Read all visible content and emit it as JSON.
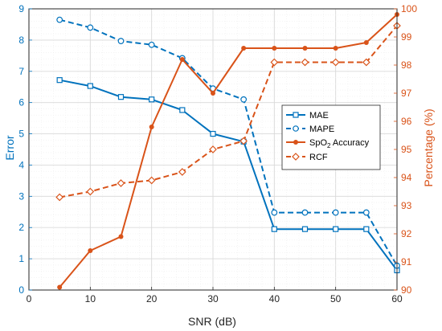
{
  "chart_data": {
    "type": "line",
    "xlabel": "SNR (dB)",
    "ylabel_left": "Error",
    "ylabel_right": "Percentage (%)",
    "xlim": [
      0,
      60
    ],
    "ylim_left": [
      0,
      9
    ],
    "ylim_right": [
      90,
      100
    ],
    "grid": true,
    "legend_position": "center-right",
    "x_ticks": [
      "0",
      "10",
      "20",
      "30",
      "40",
      "50",
      "60"
    ],
    "y_left_ticks": [
      "0",
      "1",
      "2",
      "3",
      "4",
      "5",
      "6",
      "7",
      "8",
      "9"
    ],
    "y_right_ticks": [
      "90",
      "91",
      "92",
      "93",
      "94",
      "95",
      "96",
      "97",
      "98",
      "99",
      "100"
    ],
    "x": [
      5,
      10,
      15,
      20,
      25,
      30,
      35,
      40,
      45,
      50,
      55,
      60
    ],
    "series": [
      {
        "name": "MAE",
        "axis": "left",
        "color": "#0072BD",
        "line": "solid",
        "marker": "square",
        "values": [
          6.72,
          6.53,
          6.18,
          6.1,
          5.76,
          5.0,
          4.75,
          1.95,
          1.95,
          1.95,
          1.95,
          0.63
        ]
      },
      {
        "name": "MAPE",
        "axis": "left",
        "color": "#0072BD",
        "line": "dashed",
        "marker": "circle",
        "values": [
          8.65,
          8.4,
          7.97,
          7.85,
          7.42,
          6.45,
          6.1,
          2.48,
          2.48,
          2.48,
          2.48,
          0.78
        ]
      },
      {
        "name": "SpO",
        "subscript": "2",
        "name_suffix": " Accuracy",
        "axis": "right",
        "color": "#D95319",
        "line": "solid",
        "marker": "dot",
        "values": [
          90.1,
          91.4,
          91.9,
          95.8,
          98.2,
          97.0,
          98.6,
          98.6,
          98.6,
          98.6,
          98.8,
          99.8
        ]
      },
      {
        "name": "RCF",
        "axis": "right",
        "color": "#D95319",
        "line": "dashed",
        "marker": "diamond",
        "values": [
          93.3,
          93.5,
          93.8,
          93.9,
          94.2,
          95.0,
          95.3,
          98.1,
          98.1,
          98.1,
          98.1,
          99.4
        ]
      }
    ]
  }
}
